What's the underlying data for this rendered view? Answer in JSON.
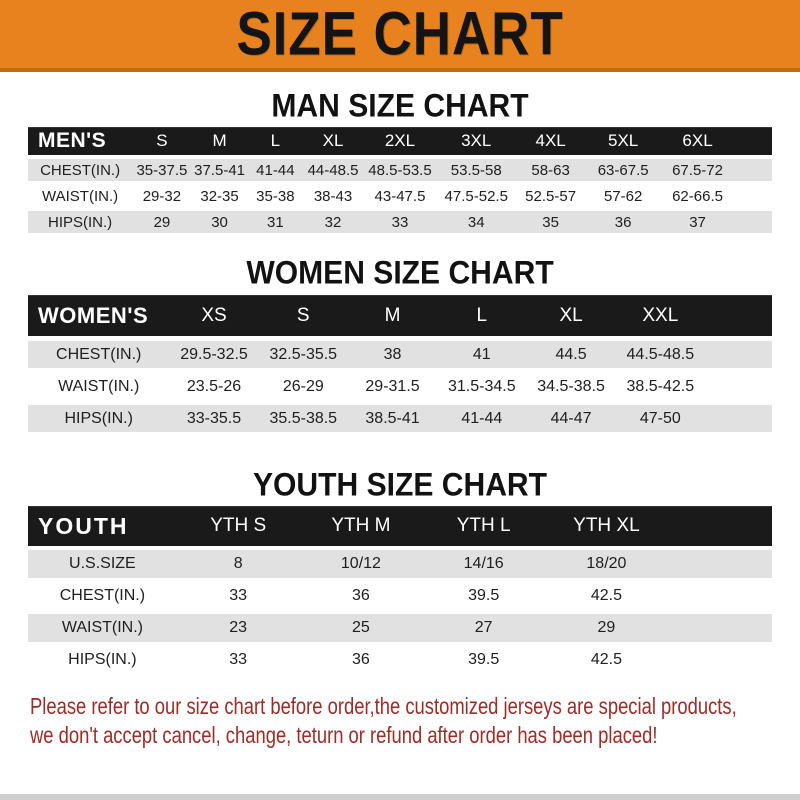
{
  "banner": {
    "title": "SIZE CHART"
  },
  "colors": {
    "banner_orange": "#E8821E",
    "banner_orange_dark": "#C06A12",
    "header_bar_black": "#1B1A1A",
    "row_gray": "#E1E1E1",
    "disclaimer_red": "#9E2B25"
  },
  "sections": [
    {
      "id": "men",
      "title": "MAN SIZE CHART",
      "table": {
        "header": [
          "MEN'S",
          "S",
          "M",
          "L",
          "XL",
          "2XL",
          "3XL",
          "4XL",
          "5XL",
          "6XL"
        ],
        "rows": [
          [
            "CHEST(IN.)",
            "35-37.5",
            "37.5-41",
            "41-44",
            "44-48.5",
            "48.5-53.5",
            "53.5-58",
            "58-63",
            "63-67.5",
            "67.5-72"
          ],
          [
            "WAIST(IN.)",
            "29-32",
            "32-35",
            "35-38",
            "38-43",
            "43-47.5",
            "47.5-52.5",
            "52.5-57",
            "57-62",
            "62-66.5"
          ],
          [
            "HIPS(IN.)",
            "29",
            "30",
            "31",
            "32",
            "33",
            "34",
            "35",
            "36",
            "37"
          ]
        ]
      }
    },
    {
      "id": "women",
      "title": "WOMEN SIZE CHART",
      "table": {
        "header": [
          "WOMEN'S",
          "XS",
          "S",
          "M",
          "L",
          "XL",
          "XXL"
        ],
        "rows": [
          [
            "CHEST(IN.)",
            "29.5-32.5",
            "32.5-35.5",
            "38",
            "41",
            "44.5",
            "44.5-48.5"
          ],
          [
            "WAIST(IN.)",
            "23.5-26",
            "26-29",
            "29-31.5",
            "31.5-34.5",
            "34.5-38.5",
            "38.5-42.5"
          ],
          [
            "HIPS(IN.)",
            "33-35.5",
            "35.5-38.5",
            "38.5-41",
            "41-44",
            "44-47",
            "47-50"
          ]
        ]
      }
    },
    {
      "id": "youth",
      "title": "YOUTH SIZE CHART",
      "table": {
        "header": [
          "YOUTH",
          "YTH S",
          "YTH M",
          "YTH L",
          "YTH XL"
        ],
        "rows": [
          [
            "U.S.SIZE",
            "8",
            "10/12",
            "14/16",
            "18/20"
          ],
          [
            "CHEST(IN.)",
            "33",
            "36",
            "39.5",
            "42.5"
          ],
          [
            "WAIST(IN.)",
            "23",
            "25",
            "27",
            "29"
          ],
          [
            "HIPS(IN.)",
            "33",
            "36",
            "39.5",
            "42.5"
          ]
        ]
      }
    }
  ],
  "disclaimer": {
    "line1": "Please refer to our size chart before order,the customized jerseys are special products,",
    "line2": "we don't accept cancel, change, teturn or refund after order has been placed!"
  }
}
